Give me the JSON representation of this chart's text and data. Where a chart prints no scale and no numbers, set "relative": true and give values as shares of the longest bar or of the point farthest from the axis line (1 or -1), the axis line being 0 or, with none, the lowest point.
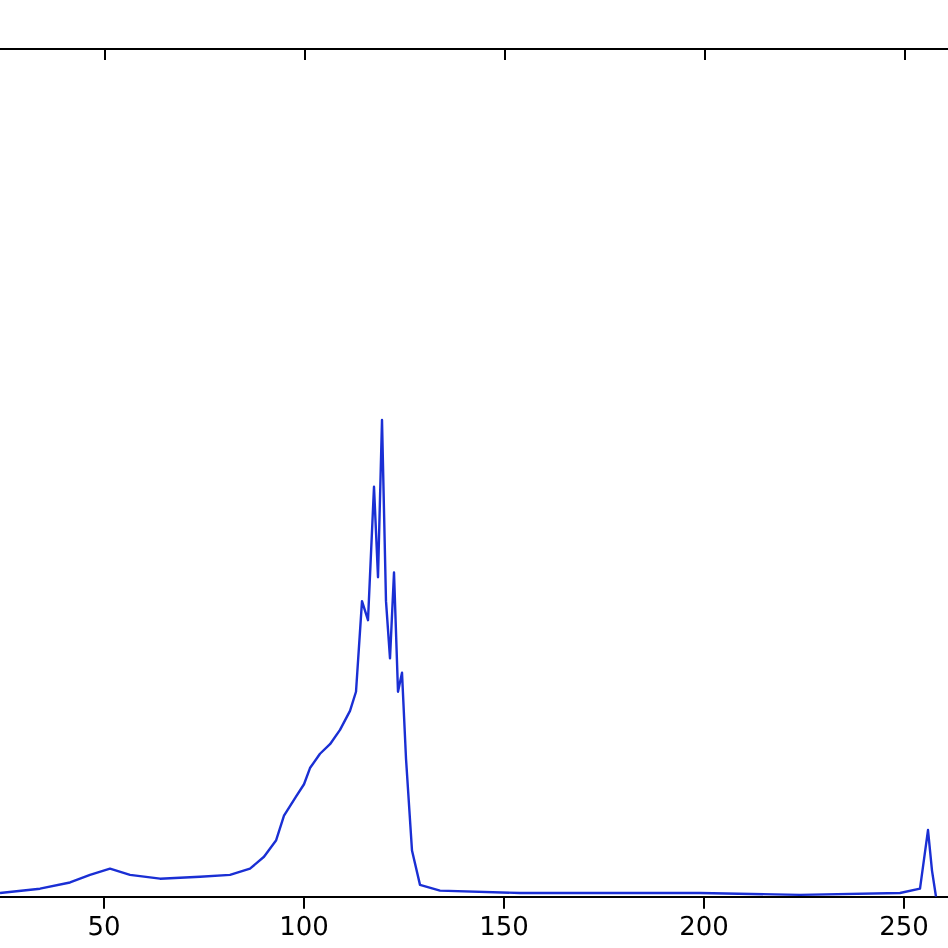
{
  "chart_data": {
    "type": "line",
    "relative": true,
    "xlim": [
      24,
      261
    ],
    "xticks": [
      50,
      100,
      150,
      200,
      250
    ],
    "grid": false,
    "legend": false,
    "marker": "none",
    "line_style": "solid",
    "x": [
      24,
      34,
      41.5,
      46.5,
      51.5,
      56.5,
      64,
      74,
      81.5,
      86.5,
      90,
      93,
      95,
      98,
      100,
      101.5,
      104,
      106.5,
      109,
      111.5,
      113,
      114.5,
      116,
      117.5,
      118.5,
      119.5,
      120.5,
      121.5,
      122.5,
      123.5,
      124.5,
      125.5,
      127,
      129,
      134,
      154,
      174,
      199,
      224,
      249,
      254,
      256,
      257,
      258
    ],
    "series": [
      {
        "color": "#1a2fd4",
        "values": [
          0.008,
          0.017,
          0.03,
          0.046,
          0.059,
          0.046,
          0.038,
          0.042,
          0.046,
          0.059,
          0.084,
          0.118,
          0.17,
          0.21,
          0.236,
          0.27,
          0.3,
          0.32,
          0.35,
          0.39,
          0.43,
          0.62,
          0.58,
          0.86,
          0.67,
          1,
          0.62,
          0.5,
          0.68,
          0.43,
          0.47,
          0.29,
          0.097,
          0.025,
          0.013,
          0.008,
          0.008,
          0.008,
          0.004,
          0.008,
          0.017,
          0.14,
          0.055,
          0
        ]
      }
    ]
  }
}
